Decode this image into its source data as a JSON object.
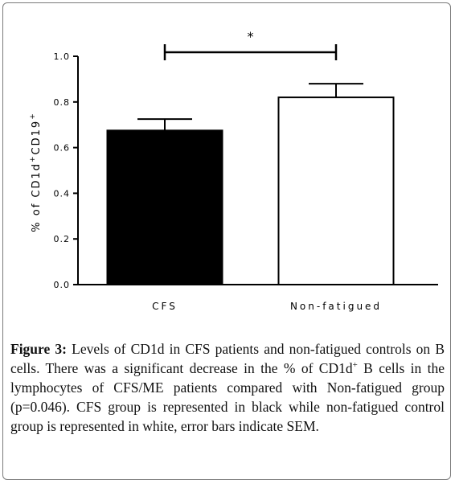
{
  "chart_data": {
    "type": "bar",
    "categories": [
      "CFS",
      "Non-fatigued"
    ],
    "values": [
      0.675,
      0.82
    ],
    "errors": [
      0.05,
      0.06
    ],
    "bar_colors": [
      "#000000",
      "#ffffff"
    ],
    "ylabel_parts": [
      "% of CD1d",
      "+",
      "CD19",
      "+"
    ],
    "xlabel": "",
    "ylim": [
      0,
      1.0
    ],
    "yticks": [
      "0.0",
      "0.2",
      "0.4",
      "0.6",
      "0.8",
      "1.0"
    ],
    "ytick_values": [
      0,
      0.2,
      0.4,
      0.6,
      0.8,
      1.0
    ],
    "significance": {
      "label": "*",
      "between": [
        0,
        1
      ],
      "level": 1.0
    }
  },
  "caption": {
    "label": "Figure 3:",
    "text_1": " Levels of CD1d in CFS patients and non-fatigued controls on B cells. There was a significant decrease in the % of CD1d",
    "sup_1": "+",
    "text_2": " B cells in the lymphocytes of CFS/ME patients compared with Non-fatigued group (p=0.046). CFS group is represented in black while non-fatigued control group is represented in white, error bars indicate SEM."
  }
}
